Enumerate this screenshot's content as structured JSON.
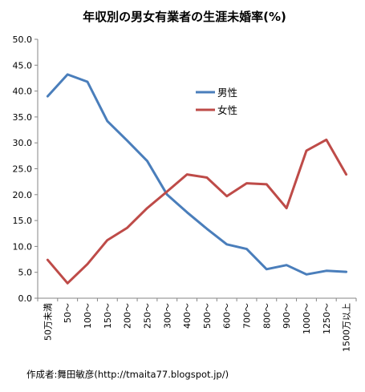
{
  "chart_data": {
    "type": "line",
    "title": "年収別の男女有業者の生涯未婚率(%)",
    "categories": [
      "50万未満",
      "50〜",
      "100〜",
      "150〜",
      "200〜",
      "250〜",
      "300〜",
      "400〜",
      "500〜",
      "600〜",
      "700〜",
      "800〜",
      "900〜",
      "1000〜",
      "1250〜",
      "1500万以上"
    ],
    "series": [
      {
        "name": "男性",
        "color": "#4a7ebb",
        "values": [
          39.0,
          43.2,
          41.8,
          34.2,
          30.4,
          26.5,
          20.0,
          16.6,
          13.4,
          10.4,
          9.5,
          5.6,
          6.4,
          4.6,
          5.3,
          5.1
        ]
      },
      {
        "name": "女性",
        "color": "#be4b48",
        "values": [
          7.4,
          2.9,
          6.6,
          11.2,
          13.6,
          17.4,
          20.6,
          23.9,
          23.3,
          19.7,
          22.2,
          22.0,
          17.4,
          28.5,
          30.6,
          23.9
        ]
      }
    ],
    "ylim": [
      0,
      50
    ],
    "yticks": [
      "0.0",
      "5.0",
      "10.0",
      "15.0",
      "20.0",
      "25.0",
      "30.0",
      "35.0",
      "40.0",
      "45.0",
      "50.0"
    ],
    "grid": false,
    "legend_position": "top-right"
  },
  "footer": {
    "credit": "作成者:舞田敏彦(http://tmaita77.blogspot.jp/)"
  }
}
